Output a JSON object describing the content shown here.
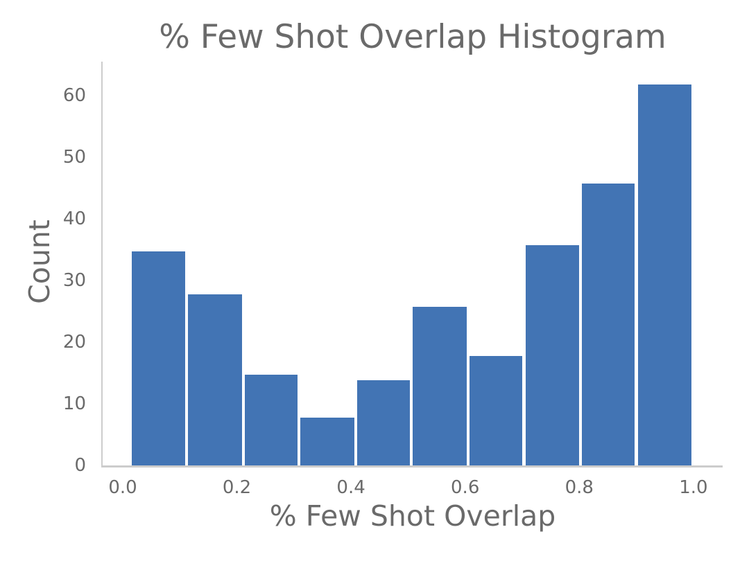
{
  "chart_data": {
    "type": "bar",
    "subtype": "histogram",
    "title": "% Few Shot Overlap Histogram",
    "xlabel": "% Few Shot Overlap",
    "ylabel": "Count",
    "values": [
      35,
      28,
      15,
      8,
      14,
      26,
      18,
      36,
      46,
      62
    ],
    "bin_edges": [
      0.013,
      0.112,
      0.211,
      0.309,
      0.408,
      0.506,
      0.605,
      0.703,
      0.802,
      0.9,
      0.999
    ],
    "x_ticks": [
      "0.0",
      "0.2",
      "0.4",
      "0.6",
      "0.8",
      "1.0"
    ],
    "x_tick_values": [
      0.0,
      0.2,
      0.4,
      0.6,
      0.8,
      1.0
    ],
    "y_ticks": [
      "0",
      "10",
      "20",
      "30",
      "40",
      "50",
      "60"
    ],
    "y_tick_values": [
      0,
      10,
      20,
      30,
      40,
      50,
      60
    ],
    "xlim": [
      -0.0352,
      1.0512
    ],
    "ylim": [
      0,
      65.5
    ],
    "grid": false,
    "legend": null,
    "colors": {
      "bar_fill": "#4274B4",
      "bar_edge": "#FFFFFF",
      "text": "#6A6A6A",
      "spine": "#CCCCCC",
      "background": "#FFFFFF"
    }
  }
}
